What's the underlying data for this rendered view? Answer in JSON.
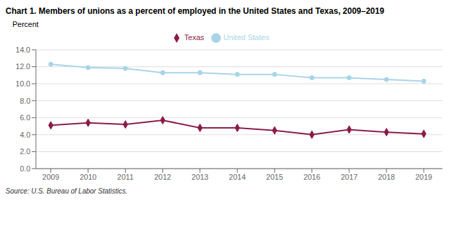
{
  "chart_data": {
    "type": "line",
    "title": "Chart 1. Members of unions as a percent of employed in the United States and Texas, 2009–2019",
    "ylabel": "Percent",
    "annotations": [
      "Source: U.S. Bureau of Labor Statistics."
    ],
    "x": [
      2009,
      2010,
      2011,
      2012,
      2013,
      2014,
      2015,
      2016,
      2017,
      2018,
      2019
    ],
    "xlim": [
      2008.6,
      2019.5
    ],
    "xticks": [
      2009,
      2010,
      2011,
      2012,
      2013,
      2014,
      2015,
      2016,
      2017,
      2018,
      2019
    ],
    "series": [
      {
        "name": "United States",
        "color": "#a8d4e8",
        "marker": "circle",
        "values": [
          12.3,
          11.9,
          11.8,
          11.3,
          11.3,
          11.1,
          11.1,
          10.7,
          10.7,
          10.5,
          10.3
        ]
      },
      {
        "name": "Texas",
        "color": "#8b1a4a",
        "marker": "diamond",
        "values": [
          5.1,
          5.4,
          5.2,
          5.7,
          4.8,
          4.8,
          4.5,
          4.0,
          4.6,
          4.3,
          4.1
        ]
      }
    ],
    "ylim": [
      0.0,
      14.0
    ],
    "yticks": [
      {
        "value": 0,
        "label": "0.0"
      },
      {
        "value": 2,
        "label": "2.0"
      },
      {
        "value": 4,
        "label": "4.0"
      },
      {
        "value": 6,
        "label": "6.0"
      },
      {
        "value": 8,
        "label": "8.0"
      },
      {
        "value": 10,
        "label": "10.0"
      },
      {
        "value": 12,
        "label": "12.0"
      },
      {
        "value": 14,
        "label": "14.0"
      }
    ],
    "grid": true,
    "legend": "top"
  }
}
